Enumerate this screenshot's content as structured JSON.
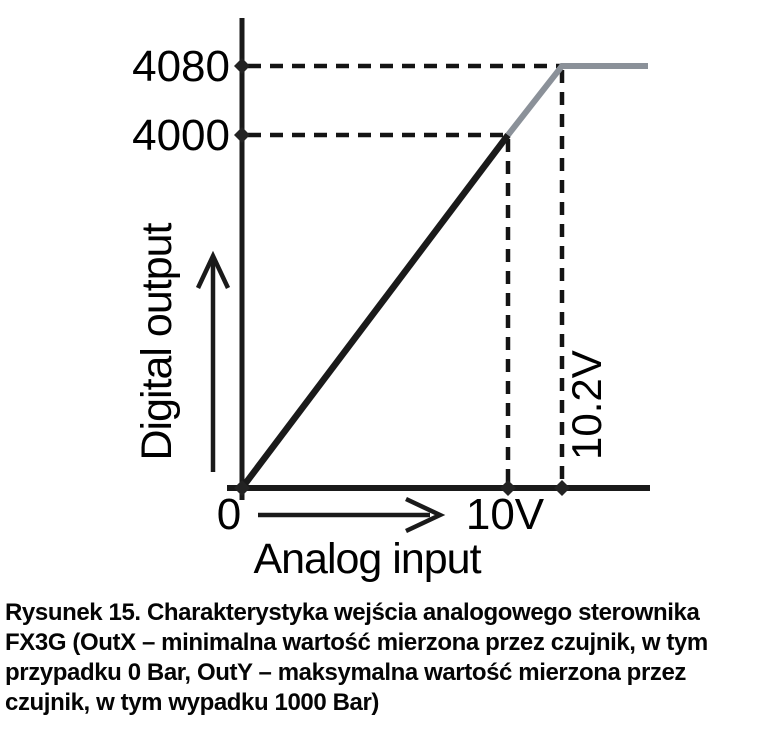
{
  "figure": {
    "caption": {
      "lines": [
        "Rysunek 15. Charakterystyka wejścia analogowego sterownika",
        "FX3G (OutX – minimalna wartość mierzona przez czujnik, w tym",
        "przypadku 0 Bar, OutY – maksymalna wartość mierzona przez",
        "czujnik, w tym wypadku 1000 Bar)"
      ]
    }
  },
  "chart_data": {
    "type": "line",
    "title": "",
    "xlabel": "Analog input",
    "ylabel": "Digital output",
    "x_ticks": [
      {
        "value": 0,
        "label": "0"
      },
      {
        "value": 10,
        "label": "10V"
      },
      {
        "value": 10.2,
        "label": "10.2V"
      }
    ],
    "y_ticks": [
      {
        "value": 4000,
        "label": "4000"
      },
      {
        "value": 4080,
        "label": "4080"
      }
    ],
    "xlim": [
      0,
      11.9
    ],
    "ylim": [
      0,
      4400
    ],
    "grid": false,
    "legend_position": "none",
    "series": [
      {
        "name": "linear-region",
        "color": "#1a1a1a",
        "points": [
          [
            0,
            0
          ],
          [
            10,
            4000
          ]
        ]
      },
      {
        "name": "saturation-region",
        "color": "#8b9199",
        "points": [
          [
            10,
            4000
          ],
          [
            10.2,
            4080
          ],
          [
            11.9,
            4080
          ]
        ]
      }
    ],
    "annotated_points": [
      {
        "x": 10,
        "y": 4000
      },
      {
        "x": 10.2,
        "y": 4080
      }
    ],
    "axis_markers": [
      [
        0,
        0
      ],
      [
        0,
        4000
      ],
      [
        0,
        4080
      ],
      [
        10,
        0
      ],
      [
        10.2,
        0
      ]
    ],
    "colors": {
      "axis": "#1a1a1a",
      "guide": "#141414",
      "marker": "#232323",
      "text": "#000000"
    }
  }
}
